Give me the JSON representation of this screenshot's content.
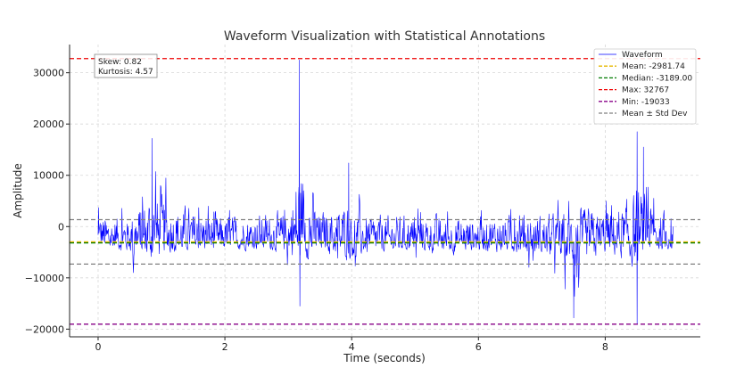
{
  "chart_data": {
    "type": "line",
    "title": "Waveform Visualization with Statistical Annotations",
    "xlabel": "Time (seconds)",
    "ylabel": "Amplitude",
    "xlim": [
      -0.45,
      9.5
    ],
    "ylim": [
      -21500,
      35500
    ],
    "xticks": [
      0,
      2,
      4,
      6,
      8
    ],
    "xtick_labels": [
      "0",
      "2",
      "4",
      "6",
      "8"
    ],
    "yticks": [
      -20000,
      -10000,
      0,
      10000,
      20000,
      30000
    ],
    "ytick_labels": [
      "−20000",
      "−10000",
      "0",
      "10000",
      "20000",
      "30000"
    ],
    "grid": true,
    "legend_position": "top-right",
    "series": [
      {
        "name": "Waveform",
        "color": "#0000ff",
        "x_start": 0,
        "x_end": 9.07,
        "envelope_x": [
          0,
          0.5,
          0.85,
          1.2,
          1.6,
          2.0,
          2.5,
          3.0,
          3.17,
          3.5,
          3.95,
          4.2,
          4.5,
          5.0,
          5.5,
          6.0,
          6.5,
          7.0,
          7.5,
          8.0,
          8.3,
          8.5,
          8.6,
          8.8,
          9.07
        ],
        "envelope_y": [
          7000,
          6500,
          17200,
          11000,
          8000,
          6000,
          7000,
          8000,
          32500,
          8000,
          12400,
          6500,
          6000,
          6000,
          5500,
          5500,
          6000,
          6000,
          8000,
          9000,
          11000,
          18500,
          15500,
          9000,
          8500
        ],
        "envelope_low": [
          -8000,
          -10000,
          -14000,
          -10000,
          -9500,
          -9000,
          -9000,
          -10000,
          -15500,
          -9000,
          -13500,
          -12000,
          -10000,
          -9500,
          -11000,
          -9500,
          -10000,
          -11500,
          -17800,
          -11000,
          -13000,
          -19000,
          -12000,
          -10000,
          -8000
        ]
      }
    ],
    "reference_lines": [
      {
        "name": "Mean: -2981.74",
        "value": -2981.74,
        "color": "#e6b800",
        "style": "dashed"
      },
      {
        "name": "Median: -3189.00",
        "value": -3189.0,
        "color": "#007a00",
        "style": "dashed"
      },
      {
        "name": "Max: 32767",
        "value": 32767,
        "color": "#ee0000",
        "style": "dashed"
      },
      {
        "name": "Min: -19033",
        "value": -19033,
        "color": "#880088",
        "style": "dashed"
      },
      {
        "name": "Mean ± Std Dev",
        "values": [
          1350,
          -7310
        ],
        "color": "#808080",
        "style": "dashed"
      }
    ],
    "stats_box": [
      "Skew: 0.82",
      "Kurtosis: 4.57"
    ]
  }
}
